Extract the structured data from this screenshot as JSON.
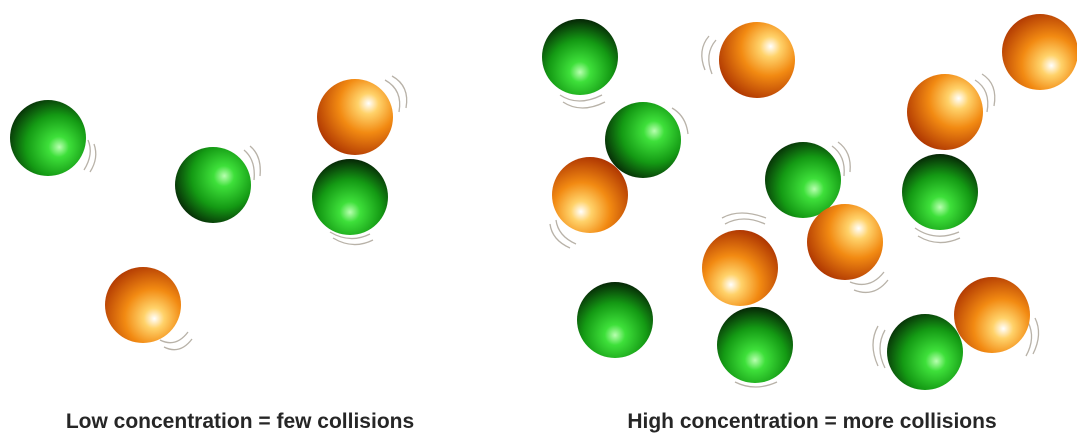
{
  "panels": [
    {
      "caption": "Low concentration = few collisions"
    },
    {
      "caption": "High concentration = more collisions"
    }
  ]
}
